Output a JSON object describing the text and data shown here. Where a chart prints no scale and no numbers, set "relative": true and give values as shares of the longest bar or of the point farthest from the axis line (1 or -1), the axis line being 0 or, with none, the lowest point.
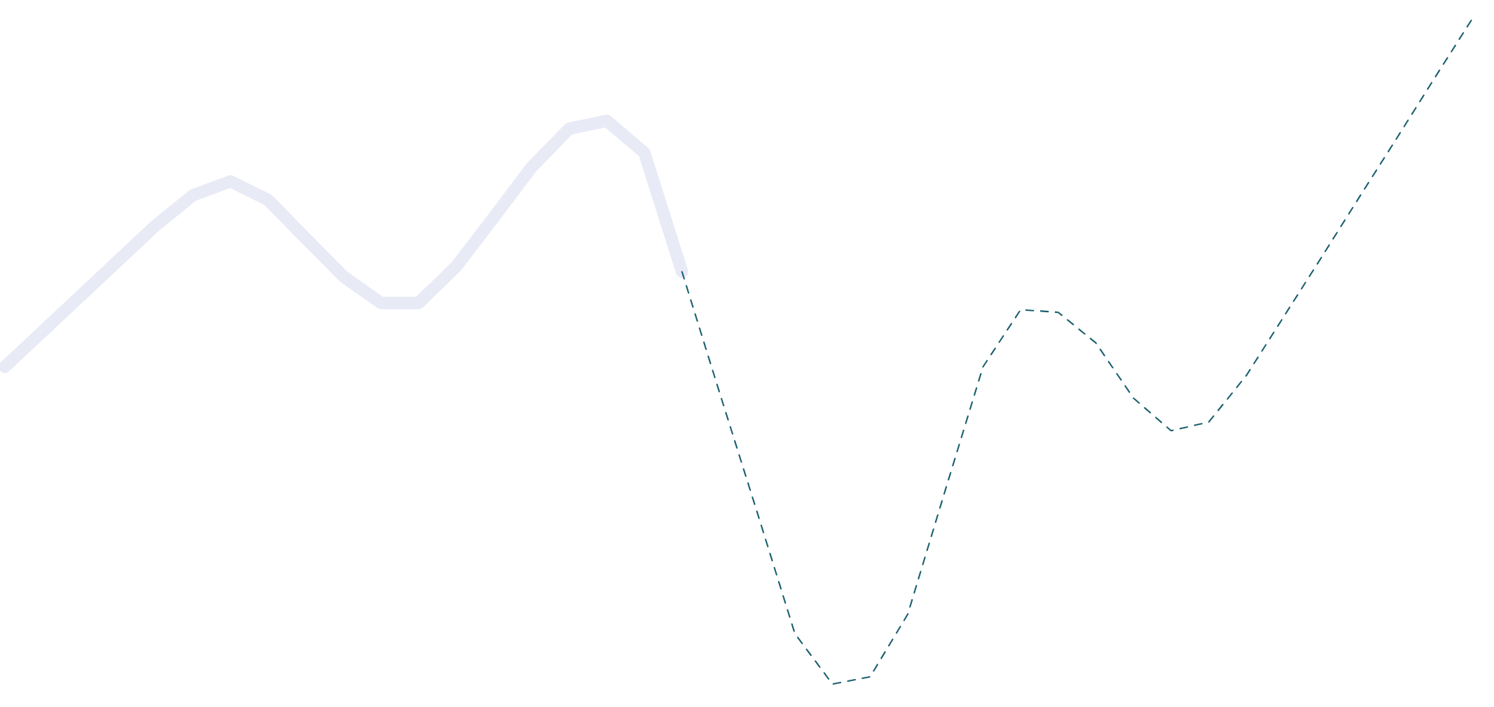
{
  "chart_data": {
    "type": "line",
    "relative": true,
    "marker": "none",
    "categories": [
      null,
      null,
      null,
      null,
      null,
      null,
      null,
      null,
      null,
      null,
      null,
      null,
      null,
      null,
      null,
      null,
      null,
      null,
      null,
      null,
      null,
      null,
      null,
      null,
      null,
      null,
      null,
      null,
      null,
      null,
      null,
      null,
      null,
      null,
      null,
      null,
      null,
      null,
      null,
      null
    ],
    "series": [
      {
        "color": "#e8eaf6",
        "line_style": "solid",
        "values": [
          0.477,
          0.53,
          0.583,
          0.636,
          0.689,
          0.735,
          0.756,
          0.728,
          0.67,
          0.613,
          0.573,
          0.573,
          0.628,
          0.702,
          0.777,
          0.835,
          0.847,
          0.799,
          0.62,
          null,
          null,
          null,
          null,
          null,
          null,
          null,
          null,
          null,
          null,
          null,
          null,
          null,
          null,
          null,
          null,
          null,
          null,
          null,
          null,
          null
        ]
      },
      {
        "color": "#1a5f6e",
        "line_style": "dashed",
        "values": [
          null,
          null,
          null,
          null,
          null,
          null,
          null,
          null,
          null,
          null,
          null,
          null,
          null,
          null,
          null,
          null,
          null,
          null,
          0.62,
          0.438,
          0.258,
          0.076,
          0.0,
          0.011,
          0.105,
          0.292,
          0.477,
          0.563,
          0.559,
          0.513,
          0.43,
          0.381,
          0.394,
          0.464,
          0.553,
          0.642,
          0.732,
          0.821,
          0.911,
          1.0
        ]
      }
    ]
  }
}
